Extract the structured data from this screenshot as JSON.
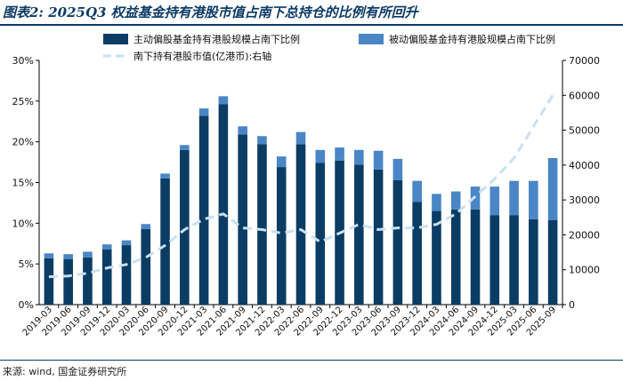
{
  "title": "图表2: 2025Q3 权益基金持有港股市值占南下总持仓的比例有所回升",
  "source": "来源: wind, 国金证券研究所",
  "colors": {
    "active": "#0b3d64",
    "passive": "#4a86c6",
    "line": "#c9e0f2",
    "axis": "#000000",
    "title": "#0d3a66"
  },
  "chart_data": {
    "type": "bar",
    "stacked": true,
    "categories": [
      "2019-03",
      "2019-06",
      "2019-09",
      "2019-12",
      "2020-03",
      "2020-06",
      "2020-09",
      "2020-12",
      "2021-03",
      "2021-06",
      "2021-09",
      "2021-12",
      "2022-03",
      "2022-06",
      "2022-09",
      "2022-12",
      "2023-03",
      "2023-06",
      "2023-09",
      "2023-12",
      "2024-03",
      "2024-06",
      "2024-09",
      "2024-12",
      "2025-03",
      "2025-06",
      "2025-09"
    ],
    "series": [
      {
        "name": "主动偏股基金持有港股规模占南下比例",
        "axis": "left",
        "kind": "bar",
        "values": [
          5.7,
          5.6,
          5.8,
          6.8,
          7.3,
          9.3,
          15.5,
          19.0,
          23.2,
          24.6,
          20.9,
          19.7,
          16.9,
          19.7,
          17.4,
          17.7,
          17.2,
          16.6,
          15.3,
          12.6,
          11.5,
          11.7,
          11.7,
          11.0,
          11.0,
          10.5,
          10.4
        ]
      },
      {
        "name": "被动偏股基金持有港股规模占南下比例",
        "axis": "left",
        "kind": "bar",
        "values": [
          0.6,
          0.6,
          0.7,
          0.6,
          0.6,
          0.6,
          0.6,
          0.6,
          0.9,
          1.0,
          1.0,
          1.0,
          1.3,
          1.5,
          1.6,
          1.6,
          1.8,
          2.3,
          2.6,
          2.6,
          2.1,
          2.2,
          2.8,
          3.5,
          4.2,
          4.7,
          7.6
        ]
      },
      {
        "name": "南下持有港股市值(亿港币):右轴",
        "axis": "right",
        "kind": "line",
        "values": [
          8000,
          8200,
          9000,
          10500,
          11500,
          13500,
          17000,
          21500,
          24500,
          26000,
          22000,
          21500,
          20500,
          21500,
          18000,
          20500,
          23000,
          21500,
          22000,
          22000,
          23000,
          26000,
          31000,
          36000,
          42000,
          51000,
          60000
        ]
      }
    ],
    "yleft": {
      "min": 0,
      "max": 30,
      "ticks": [
        "0%",
        "5%",
        "10%",
        "15%",
        "20%",
        "25%",
        "30%"
      ]
    },
    "yright": {
      "min": 0,
      "max": 70000,
      "ticks": [
        "0",
        "10000",
        "20000",
        "30000",
        "40000",
        "50000",
        "60000",
        "70000"
      ]
    },
    "legend_position": "top"
  }
}
